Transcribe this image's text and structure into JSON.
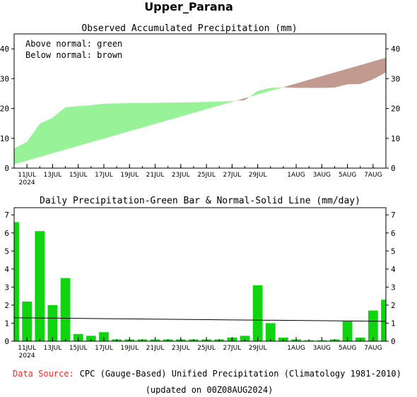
{
  "page_title": "Upper_Parana",
  "colors": {
    "green_fill": "#98f298",
    "brown_fill": "#c29a8f",
    "bar": "#11d411",
    "normal_line": "#000000",
    "source_label": "#ff2a2a"
  },
  "chart_data": [
    {
      "type": "area",
      "title": "Observed Accumulated Precipitation (mm)",
      "annotations": [
        "Above normal: green",
        "Below normal: brown"
      ],
      "ylim": [
        0,
        45
      ],
      "yticks": [
        0,
        10,
        20,
        30,
        40
      ],
      "xlim": [
        0,
        29
      ],
      "x_tick_labels": [
        "11JUL",
        "13JUL",
        "15JUL",
        "17JUL",
        "19JUL",
        "21JUL",
        "23JUL",
        "25JUL",
        "27JUL",
        "29JUL",
        "1AUG",
        "3AUG",
        "5AUG",
        "7AUG"
      ],
      "x_tick_positions": [
        1,
        3,
        5,
        7,
        9,
        11,
        13,
        15,
        17,
        19,
        22,
        24,
        26,
        28
      ],
      "year_label": "2024",
      "series": [
        {
          "name": "observed",
          "x": [
            0,
            1,
            2,
            3,
            4,
            5,
            6,
            7,
            8,
            9,
            10,
            11,
            12,
            13,
            14,
            15,
            16,
            17,
            18,
            19,
            20,
            21,
            22,
            23,
            24,
            25,
            26,
            27,
            28,
            29
          ],
          "values": [
            6.6,
            8.8,
            14.9,
            16.9,
            20.4,
            20.8,
            21.1,
            21.6,
            21.7,
            21.8,
            21.8,
            21.9,
            22.0,
            22.0,
            22.1,
            22.2,
            22.3,
            22.5,
            22.8,
            25.9,
            26.9,
            27.1,
            26.9,
            26.9,
            26.9,
            27.0,
            28.1,
            28.2,
            29.8,
            32.1
          ]
        },
        {
          "name": "normal",
          "x": [
            0,
            29
          ],
          "values": [
            1.3,
            37.0
          ]
        }
      ]
    },
    {
      "type": "bar",
      "title": "Daily Precipitation-Green Bar & Normal-Solid Line (mm/day)",
      "ylim": [
        0,
        7.4
      ],
      "yticks": [
        0,
        1,
        2,
        3,
        4,
        5,
        6,
        7
      ],
      "xlim": [
        0,
        29
      ],
      "x_tick_labels": [
        "11JUL",
        "13JUL",
        "15JUL",
        "17JUL",
        "19JUL",
        "21JUL",
        "23JUL",
        "25JUL",
        "27JUL",
        "29JUL",
        "1AUG",
        "3AUG",
        "5AUG",
        "7AUG"
      ],
      "x_tick_positions": [
        1,
        3,
        5,
        7,
        9,
        11,
        13,
        15,
        17,
        19,
        22,
        24,
        26,
        28
      ],
      "year_label": "2024",
      "x": [
        0,
        1,
        2,
        3,
        4,
        5,
        6,
        7,
        8,
        9,
        10,
        11,
        12,
        13,
        14,
        15,
        16,
        17,
        18,
        19,
        20,
        21,
        22,
        23,
        24,
        25,
        26,
        27,
        28,
        29
      ],
      "values": [
        6.6,
        2.2,
        6.1,
        2.0,
        3.5,
        0.4,
        0.3,
        0.5,
        0.1,
        0.1,
        0.1,
        0.1,
        0.1,
        0.1,
        0.1,
        0.1,
        0.1,
        0.2,
        0.3,
        3.1,
        1.0,
        0.2,
        0.1,
        0.05,
        0.05,
        0.1,
        1.1,
        0.2,
        1.7,
        2.3
      ],
      "normal": {
        "x": [
          0,
          29
        ],
        "values": [
          1.3,
          1.1
        ]
      }
    }
  ],
  "footer": {
    "source_label": "Data Source:",
    "source_text": "CPC (Gauge-Based) Unified Precipitation (Climatology 1981-2010)",
    "updated": "(updated on 00Z08AUG2024)"
  }
}
